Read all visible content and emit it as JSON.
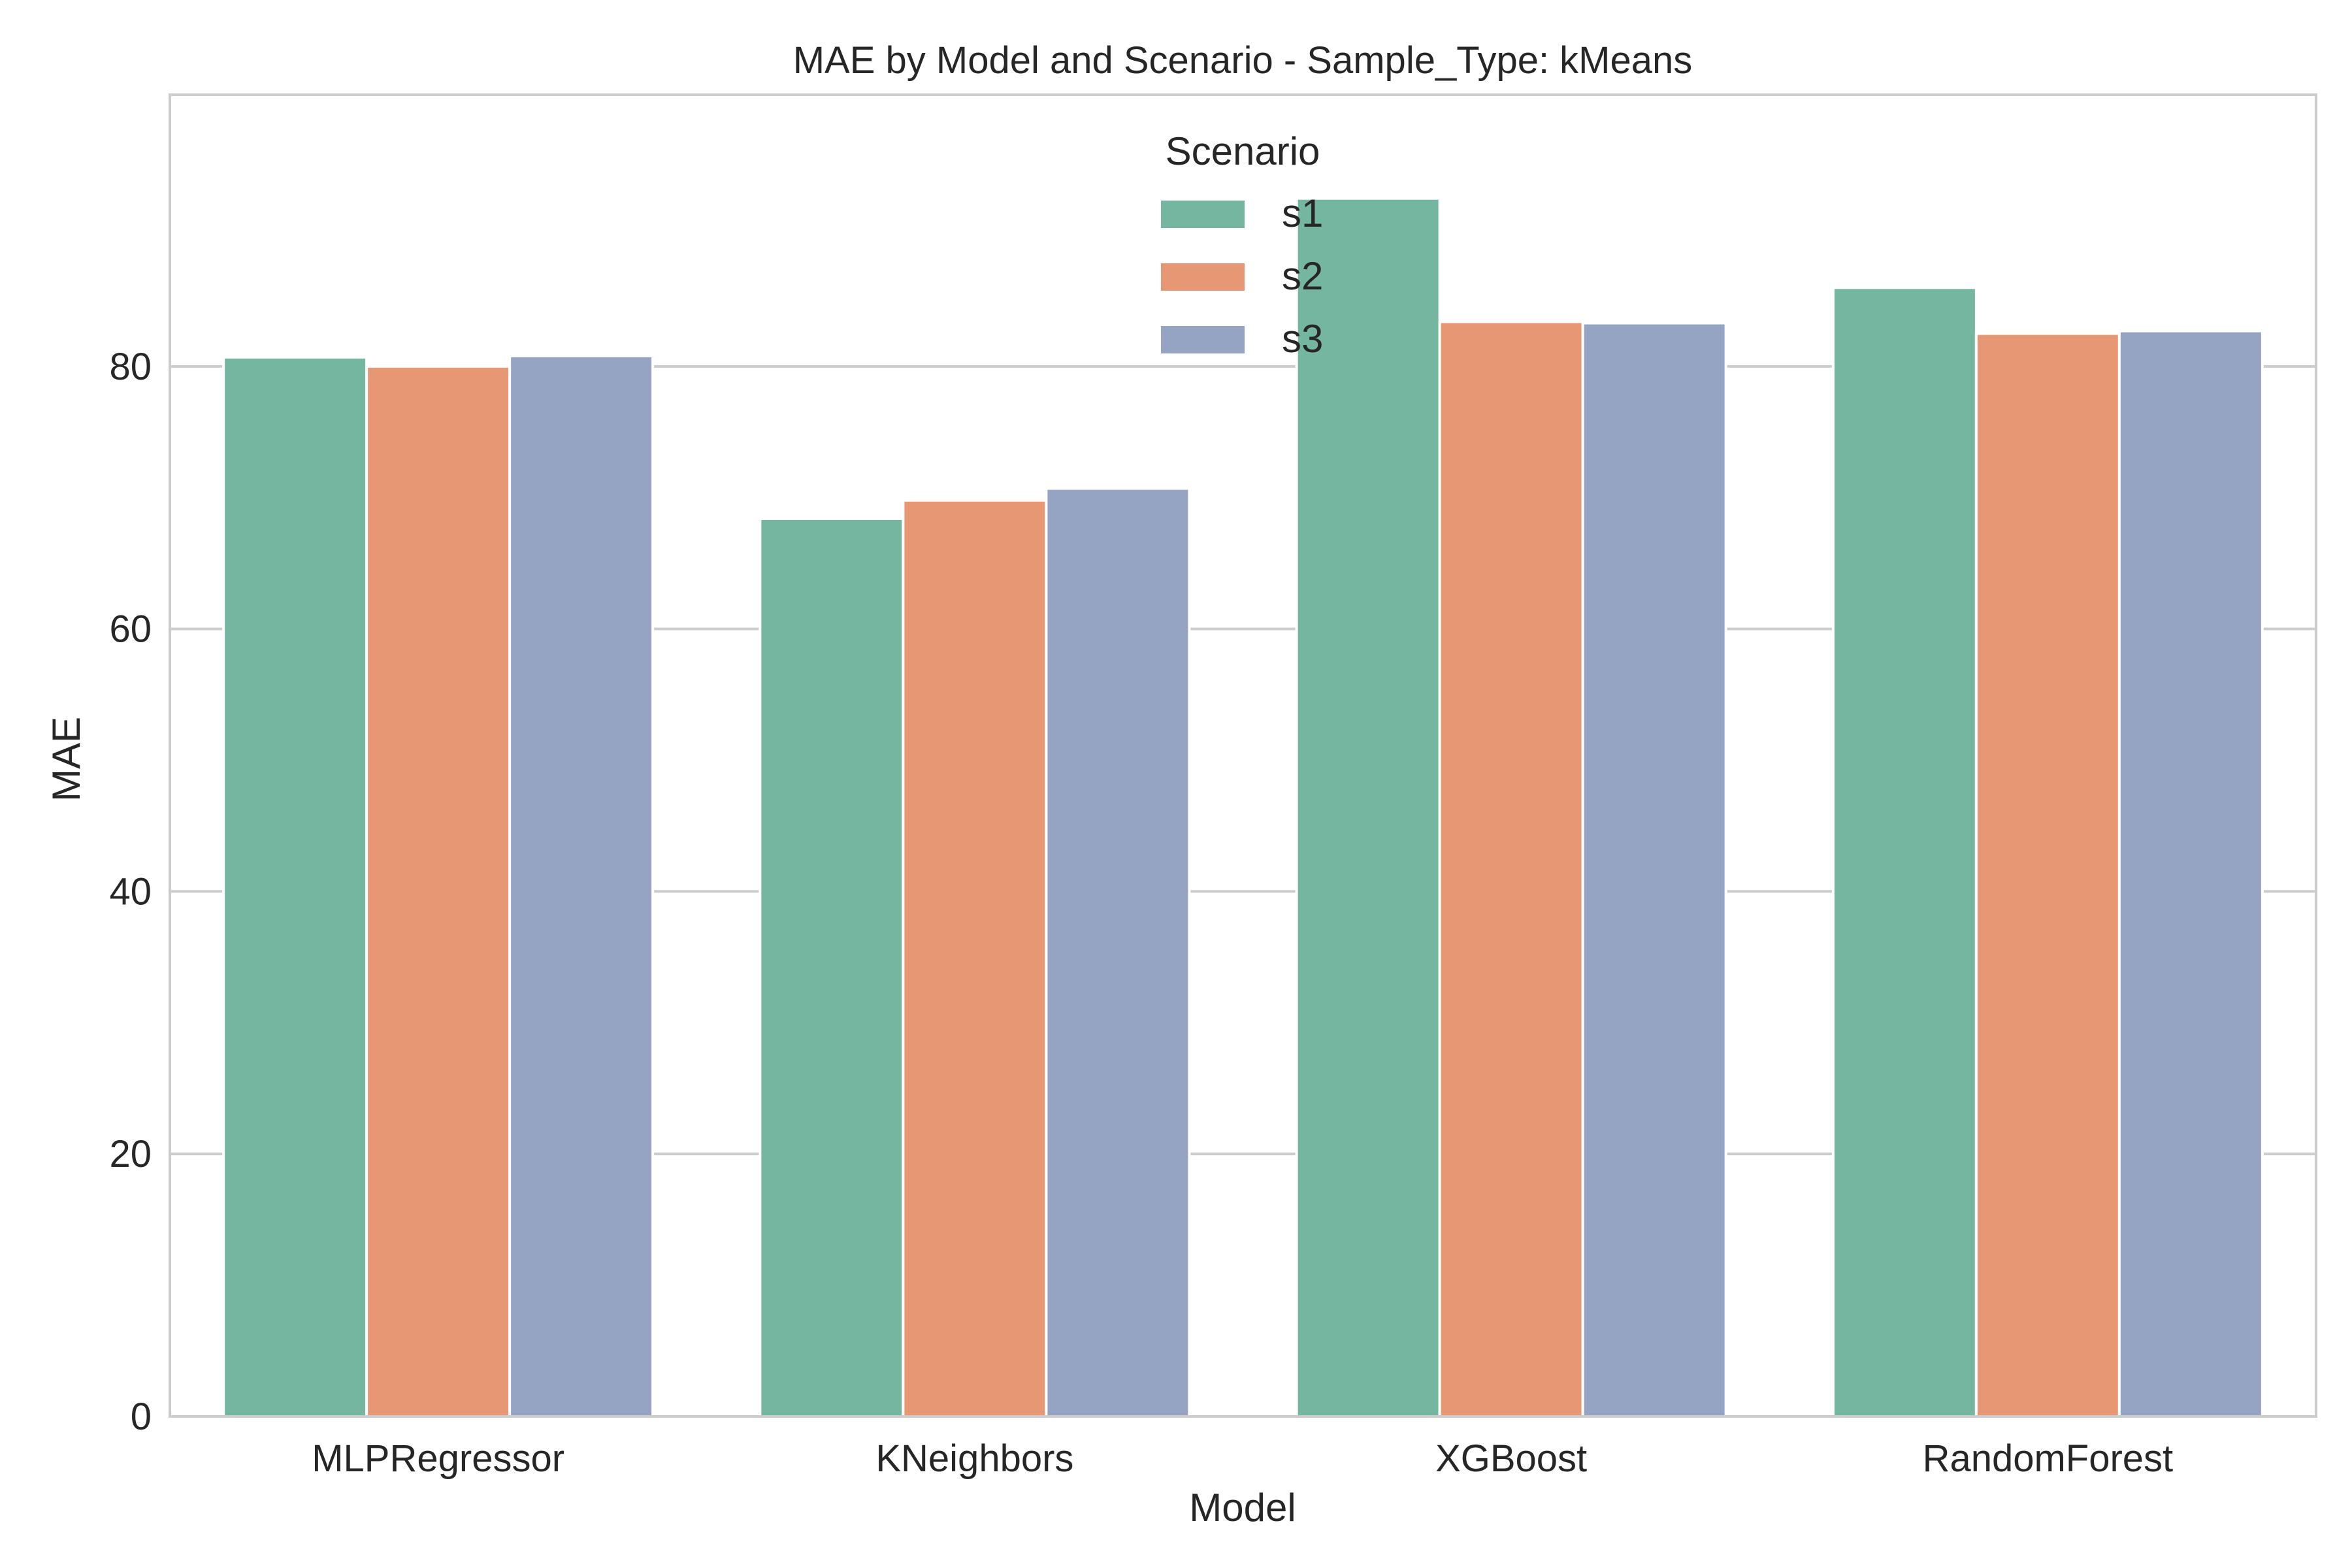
{
  "chart_data": {
    "type": "bar",
    "title": "MAE by Model and Scenario - Sample_Type: kMeans",
    "xlabel": "Model",
    "ylabel": "MAE",
    "categories": [
      "MLPRegressor",
      "KNeighbors",
      "XGBoost",
      "RandomForest"
    ],
    "series": [
      {
        "name": "s1",
        "color": "#74b6a0",
        "values": [
          80.7,
          68.4,
          92.8,
          86.0
        ]
      },
      {
        "name": "s2",
        "color": "#e89774",
        "values": [
          80.0,
          69.8,
          83.4,
          82.5
        ]
      },
      {
        "name": "s3",
        "color": "#95a4c3",
        "values": [
          80.8,
          70.7,
          83.3,
          82.7
        ]
      }
    ],
    "ylim": [
      0,
      100.7
    ],
    "yticks": [
      0,
      20,
      40,
      60,
      80
    ],
    "grid": true,
    "legend": {
      "title": "Scenario",
      "placement": "top-center"
    }
  }
}
